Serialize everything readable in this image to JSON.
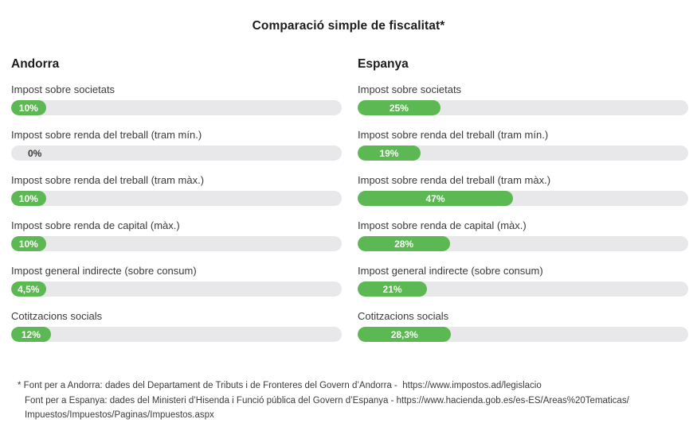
{
  "title": "Comparació simple de fiscalitat*",
  "chart_data": {
    "type": "bar",
    "orientation": "horizontal",
    "title": "Comparació simple de fiscalitat*",
    "unit": "%",
    "xlim": [
      0,
      100
    ],
    "grid": false,
    "legend": "none",
    "bar_color": "#5cb852",
    "track_color": "#e8e8ea",
    "categories": [
      "Impost sobre societats",
      "Impost sobre renda del treball (tram mín.)",
      "Impost sobre renda del treball (tram màx.)",
      "Impost sobre renda de capital (màx.)",
      "Impost general indirecte (sobre consum)",
      "Cotitzacions socials"
    ],
    "series": [
      {
        "name": "Andorra",
        "values": [
          10,
          0,
          10,
          10,
          4.5,
          12
        ],
        "labels": [
          "10%",
          "0%",
          "10%",
          "10%",
          "4,5%",
          "12%"
        ]
      },
      {
        "name": "Espanya",
        "values": [
          25,
          19,
          47,
          28,
          21,
          28.3
        ],
        "labels": [
          "25%",
          "19%",
          "47%",
          "28%",
          "21%",
          "28,3%"
        ]
      }
    ]
  },
  "footnote": {
    "lines": [
      "* Font per a Andorra: dades del Departament de Tributs i de Fronteres del Govern d’Andorra -  https://www.impostos.ad/legislacio",
      "Font per a Espanya: dades del Ministeri d’Hisenda i Funció pública del Govern d’Espanya - https://www.hacienda.gob.es/es-ES/Areas%20Tematicas/",
      "Impuestos/Impuestos/Paginas/Impuestos.aspx"
    ]
  }
}
